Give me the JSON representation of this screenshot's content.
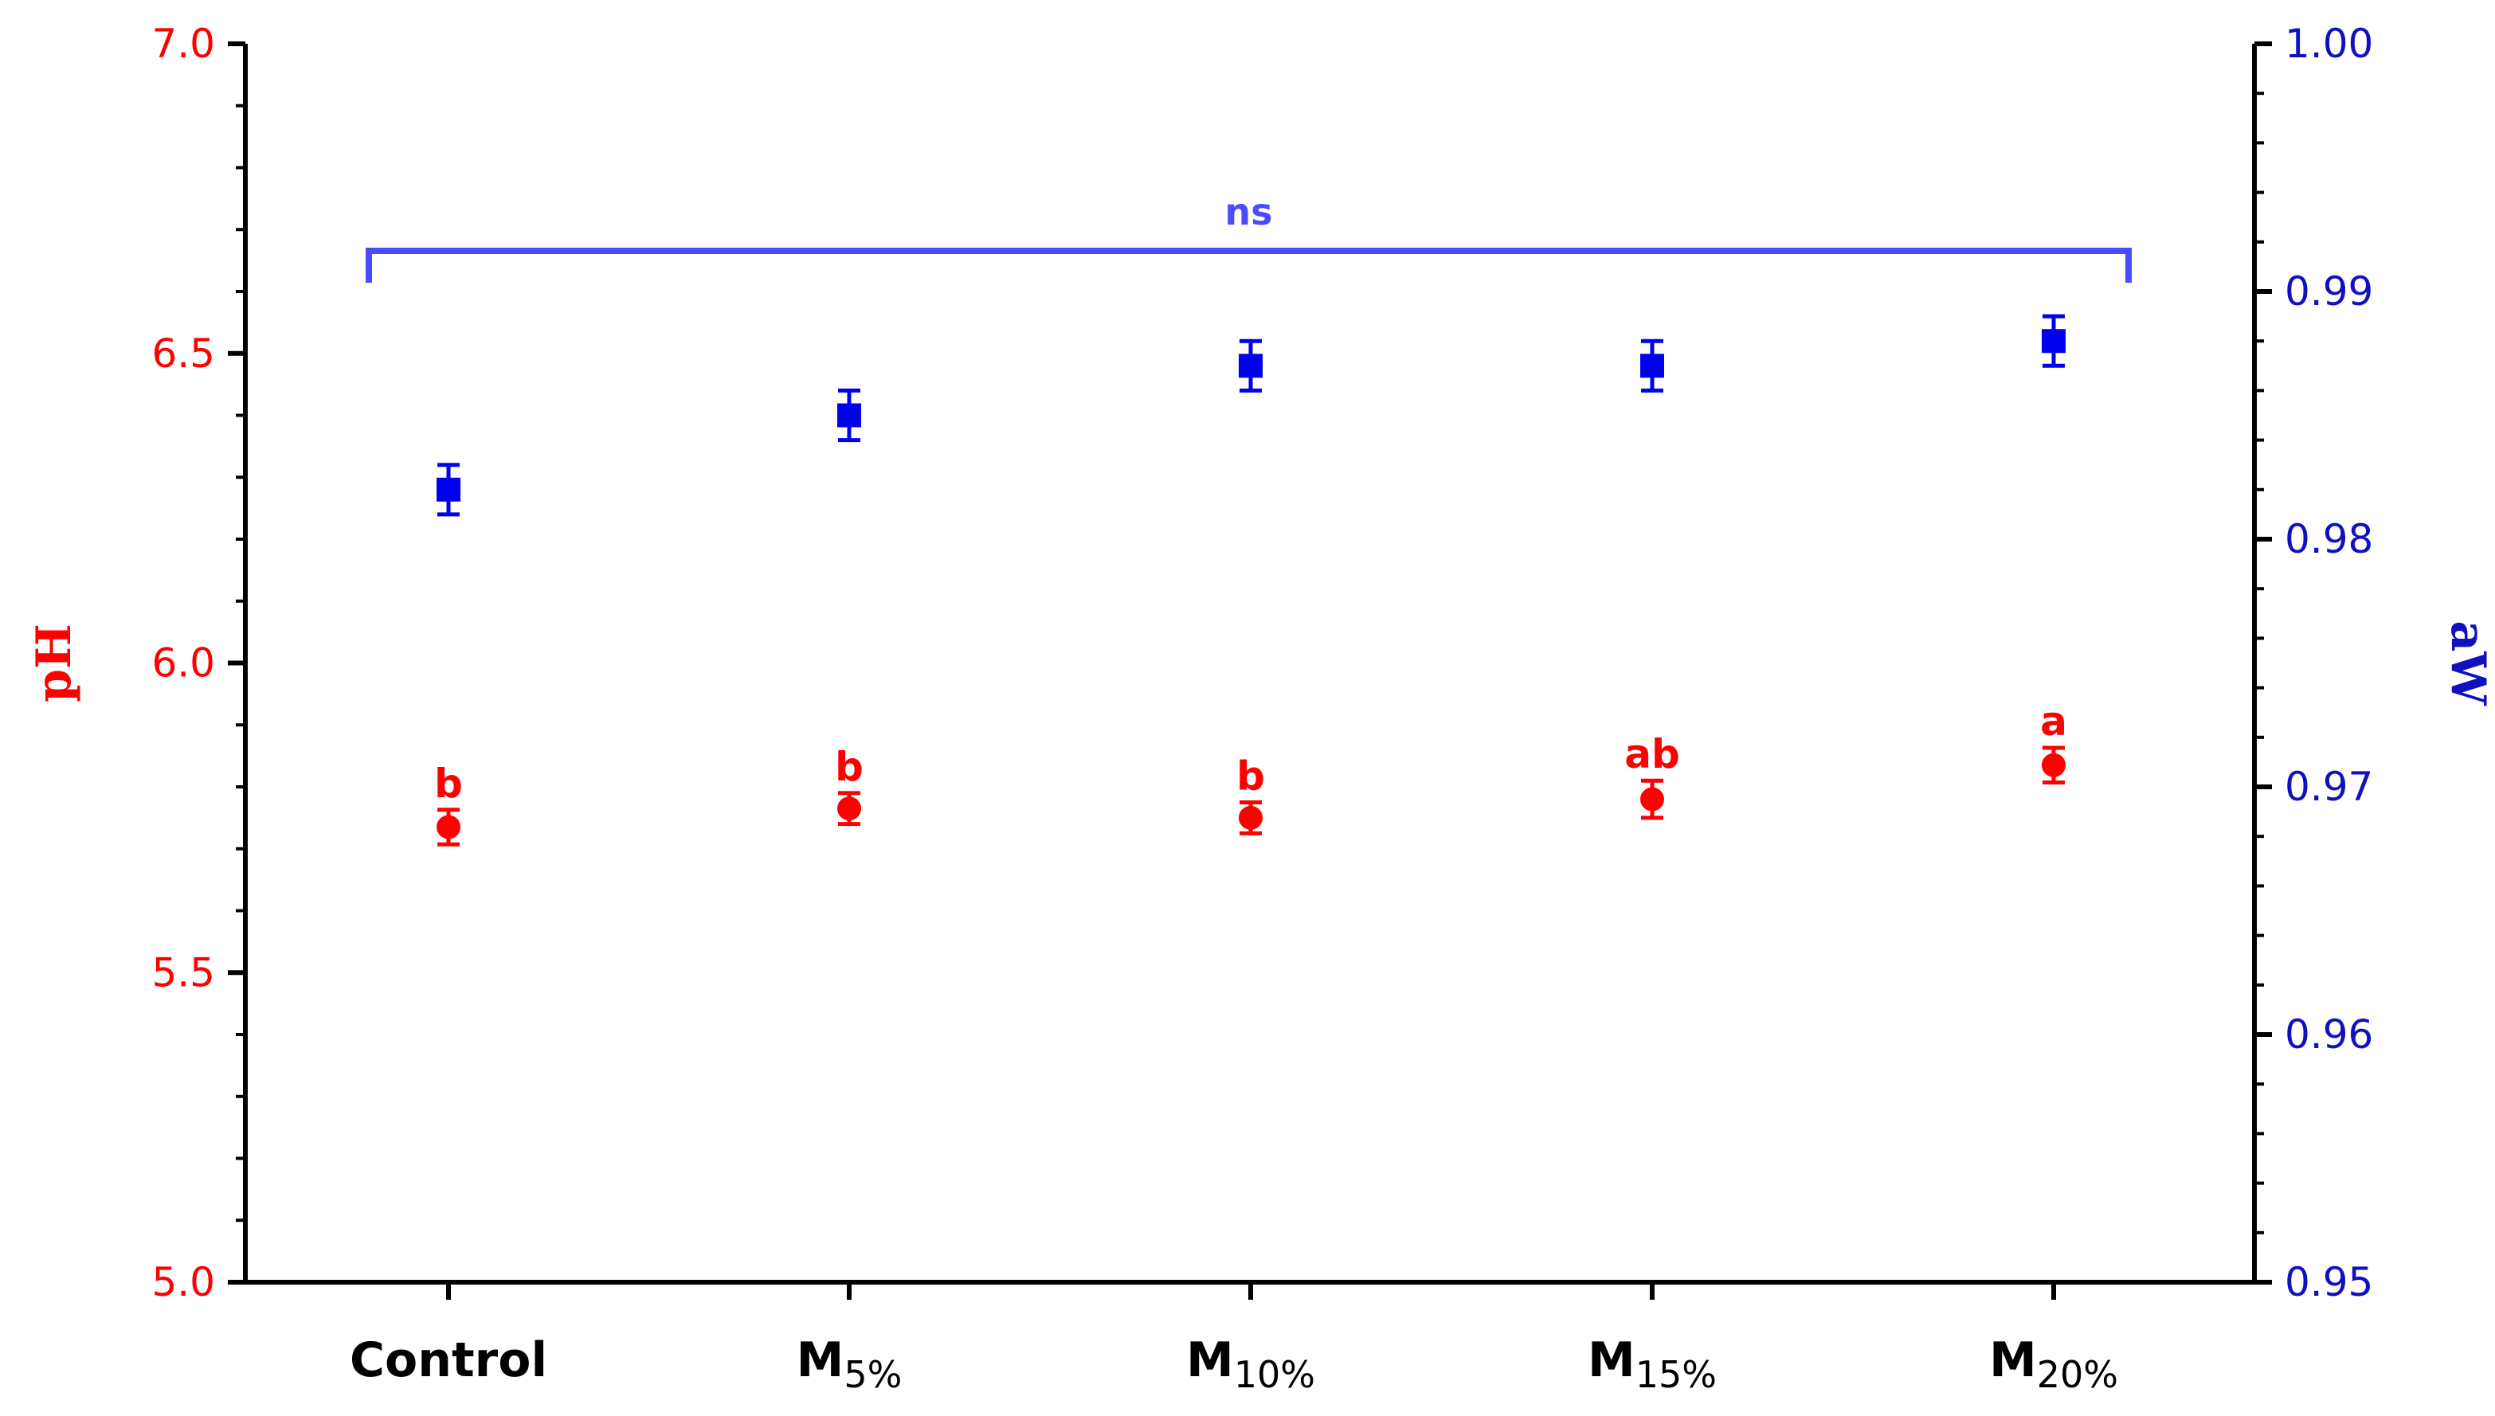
{
  "chart_data": {
    "type": "scatter",
    "categories": [
      {
        "main": "Control",
        "sub": ""
      },
      {
        "main": "M",
        "sub": "5%"
      },
      {
        "main": "M",
        "sub": "10%"
      },
      {
        "main": "M",
        "sub": "15%"
      },
      {
        "main": "M",
        "sub": "20%"
      }
    ],
    "left_axis": {
      "label": "pH",
      "range": [
        5.0,
        7.0
      ],
      "ticks": [
        "5.0",
        "5.5",
        "6.0",
        "6.5",
        "7.0"
      ],
      "color": "#ff0000"
    },
    "right_axis": {
      "label": "aW",
      "range": [
        0.95,
        1.0
      ],
      "ticks": [
        "0.95",
        "0.96",
        "0.97",
        "0.98",
        "0.99",
        "1.00"
      ],
      "color": "#1010c0"
    },
    "series": [
      {
        "axis": "left",
        "marker": "circle",
        "color": "#ff0000",
        "values": [
          5.735,
          5.765,
          5.75,
          5.78,
          5.835
        ],
        "errors": [
          0.028,
          0.025,
          0.025,
          0.03,
          0.028
        ],
        "labels": [
          "b",
          "b",
          "b",
          "ab",
          "a"
        ]
      },
      {
        "axis": "right",
        "marker": "square",
        "color": "#0000ee",
        "values": [
          0.982,
          0.985,
          0.987,
          0.987,
          0.988
        ],
        "errors": [
          0.001,
          0.001,
          0.001,
          0.001,
          0.001
        ]
      }
    ],
    "annotations": [
      {
        "text": "ns",
        "color": "#4a4aff"
      }
    ]
  }
}
